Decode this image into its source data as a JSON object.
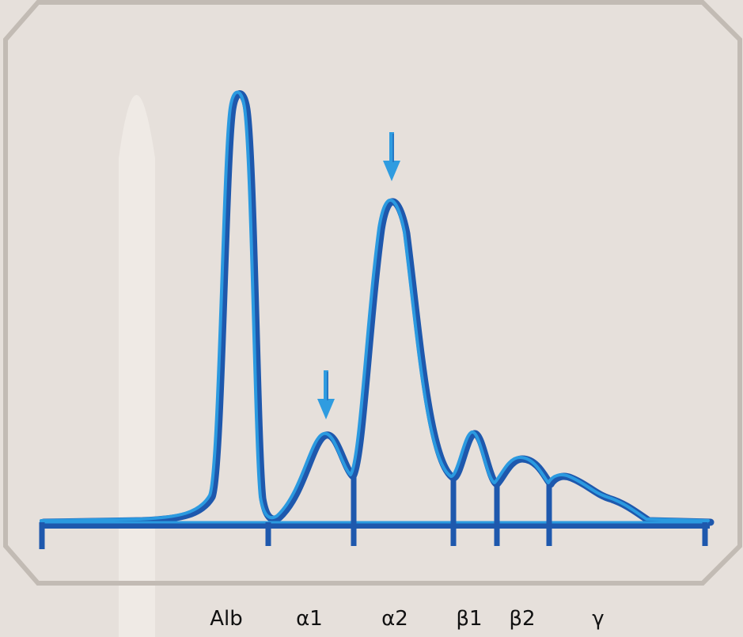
{
  "chart_data": {
    "type": "line",
    "title": "",
    "xlabel": "",
    "ylabel": "",
    "ylim": [
      0,
      100
    ],
    "fractions": [
      "Alb",
      "α1",
      "α2",
      "β1",
      "β2",
      "γ"
    ],
    "peaks": [
      {
        "fraction": "Alb",
        "height": 100,
        "arrow": false
      },
      {
        "fraction": "α1",
        "height": 21,
        "arrow": true
      },
      {
        "fraction": "α2",
        "height": 74,
        "arrow": true
      },
      {
        "fraction": "β1",
        "height": 19,
        "arrow": false
      },
      {
        "fraction": "β2",
        "height": 14,
        "arrow": false
      },
      {
        "fraction": "γ",
        "height": 10,
        "arrow": false
      }
    ],
    "colors": {
      "curve_dark": "#1e58ad",
      "curve_light": "#2b9ae0",
      "arrow": "#2f9ce0",
      "frame": "#c2bbb4",
      "background": "#e6e0db"
    }
  }
}
